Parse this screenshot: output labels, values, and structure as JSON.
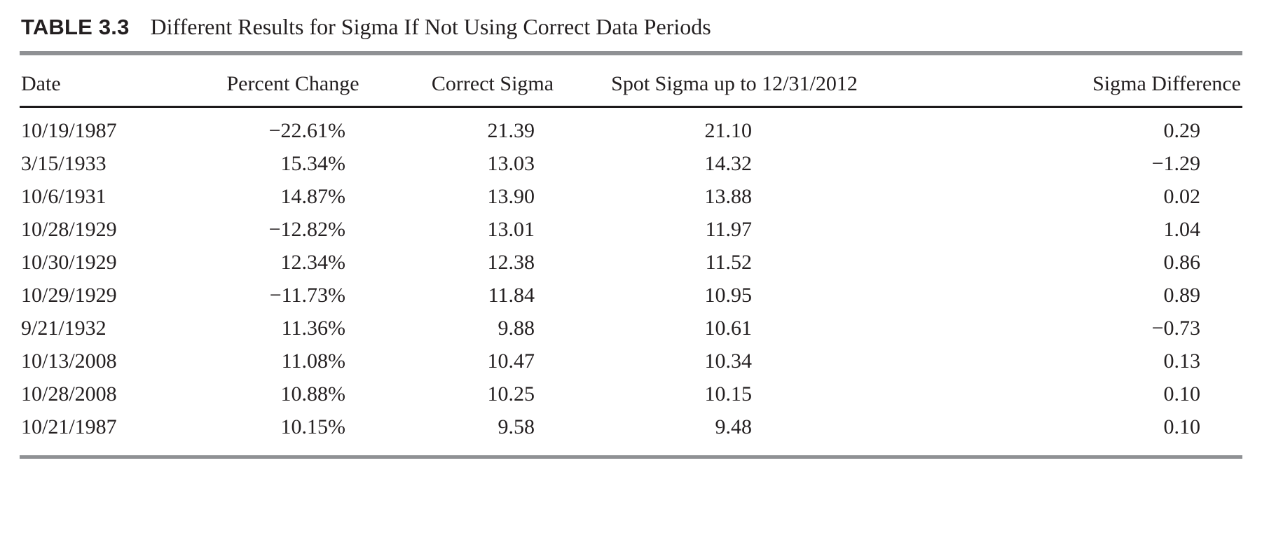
{
  "title": {
    "label": "TABLE 3.3",
    "text": "Different Results for Sigma If Not Using Correct Data Periods"
  },
  "colors": {
    "text": "#231f20",
    "rule_gray": "#8f9194",
    "rule_black": "#1d1a1b",
    "background": "#ffffff"
  },
  "table": {
    "columns": [
      "Date",
      "Percent Change",
      "Correct Sigma",
      "Spot Sigma up to 12/31/2012",
      "Sigma Difference"
    ],
    "column_keys": [
      "date",
      "percent-change",
      "correct-sigma",
      "spot-sigma",
      "sigma-difference"
    ],
    "rows": [
      [
        "10/19/1987",
        "−22.61%",
        "21.39",
        "21.10",
        "0.29"
      ],
      [
        "3/15/1933",
        "15.34%",
        "13.03",
        "14.32",
        "−1.29"
      ],
      [
        "10/6/1931",
        "14.87%",
        "13.90",
        "13.88",
        "0.02"
      ],
      [
        "10/28/1929",
        "−12.82%",
        "13.01",
        "11.97",
        "1.04"
      ],
      [
        "10/30/1929",
        "12.34%",
        "12.38",
        "11.52",
        "0.86"
      ],
      [
        "10/29/1929",
        "−11.73%",
        "11.84",
        "10.95",
        "0.89"
      ],
      [
        "9/21/1932",
        "11.36%",
        "9.88",
        "10.61",
        "−0.73"
      ],
      [
        "10/13/2008",
        "11.08%",
        "10.47",
        "10.34",
        "0.13"
      ],
      [
        "10/28/2008",
        "10.88%",
        "10.25",
        "10.15",
        "0.10"
      ],
      [
        "10/21/1987",
        "10.15%",
        "9.58",
        "9.48",
        "0.10"
      ]
    ]
  }
}
